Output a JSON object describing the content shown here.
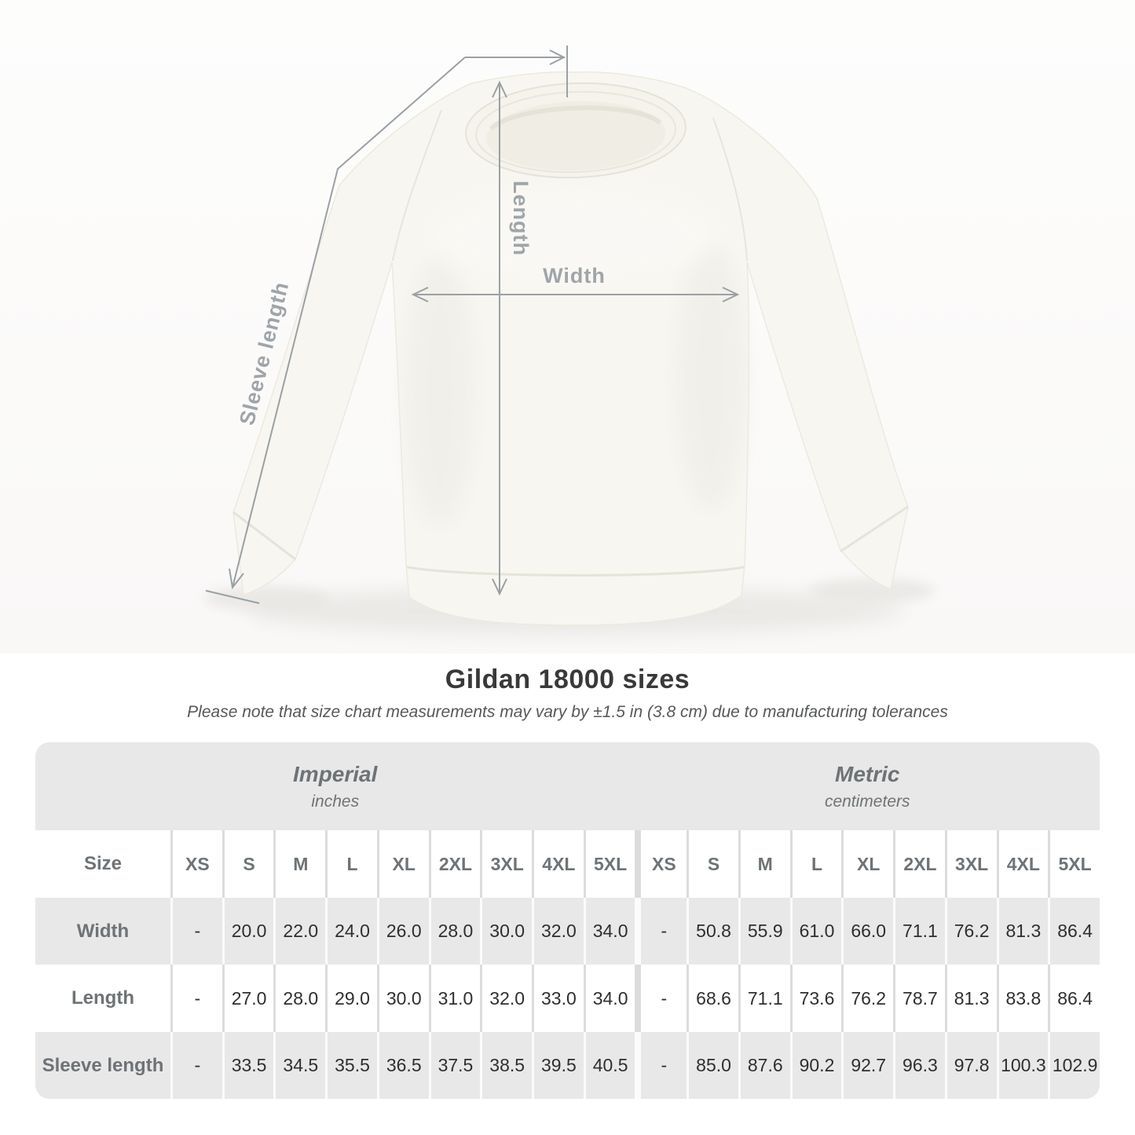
{
  "diagram": {
    "labels": {
      "length": "Length",
      "width": "Width",
      "sleeve": "Sleeve length"
    }
  },
  "title": "Gildan 18000 sizes",
  "subtitle": "Please note that size chart measurements may vary by ±1.5 in (3.8 cm) due to manufacturing tolerances",
  "table": {
    "size_label": "Size",
    "unit_groups": [
      {
        "name": "Imperial",
        "unit": "inches"
      },
      {
        "name": "Metric",
        "unit": "centimeters"
      }
    ],
    "sizes": [
      "XS",
      "S",
      "M",
      "L",
      "XL",
      "2XL",
      "3XL",
      "4XL",
      "5XL"
    ],
    "rows": [
      {
        "label": "Width",
        "imperial": [
          "-",
          "20.0",
          "22.0",
          "24.0",
          "26.0",
          "28.0",
          "30.0",
          "32.0",
          "34.0"
        ],
        "metric": [
          "-",
          "50.8",
          "55.9",
          "61.0",
          "66.0",
          "71.1",
          "76.2",
          "81.3",
          "86.4"
        ]
      },
      {
        "label": "Length",
        "imperial": [
          "-",
          "27.0",
          "28.0",
          "29.0",
          "30.0",
          "31.0",
          "32.0",
          "33.0",
          "34.0"
        ],
        "metric": [
          "-",
          "68.6",
          "71.1",
          "73.6",
          "76.2",
          "78.7",
          "81.3",
          "83.8",
          "86.4"
        ]
      },
      {
        "label": "Sleeve length",
        "imperial": [
          "-",
          "33.5",
          "34.5",
          "35.5",
          "36.5",
          "37.5",
          "38.5",
          "39.5",
          "40.5"
        ],
        "metric": [
          "-",
          "85.0",
          "87.6",
          "90.2",
          "92.7",
          "96.3",
          "97.8",
          "100.3",
          "102.9"
        ]
      }
    ]
  },
  "colors": {
    "table_band": "#e9e8e8",
    "row_alt": "#e9e8e8",
    "row_white": "#ffffff",
    "header_text": "#6d7376",
    "value_text": "#2f2f2f",
    "arrow": "#9aa0a4",
    "garment": "#f8f6f1"
  },
  "chart_data": {
    "type": "table",
    "title": "Gildan 18000 sizes",
    "note": "Please note that size chart measurements may vary by ±1.5 in (3.8 cm) due to manufacturing tolerances",
    "columns": [
      "Size",
      "XS",
      "S",
      "M",
      "L",
      "XL",
      "2XL",
      "3XL",
      "4XL",
      "5XL"
    ],
    "imperial_unit": "inches",
    "metric_unit": "centimeters",
    "rows": [
      {
        "measure": "Width",
        "imperial": [
          null,
          20.0,
          22.0,
          24.0,
          26.0,
          28.0,
          30.0,
          32.0,
          34.0
        ],
        "metric": [
          null,
          50.8,
          55.9,
          61.0,
          66.0,
          71.1,
          76.2,
          81.3,
          86.4
        ]
      },
      {
        "measure": "Length",
        "imperial": [
          null,
          27.0,
          28.0,
          29.0,
          30.0,
          31.0,
          32.0,
          33.0,
          34.0
        ],
        "metric": [
          null,
          68.6,
          71.1,
          73.6,
          76.2,
          78.7,
          81.3,
          83.8,
          86.4
        ]
      },
      {
        "measure": "Sleeve length",
        "imperial": [
          null,
          33.5,
          34.5,
          35.5,
          36.5,
          37.5,
          38.5,
          39.5,
          40.5
        ],
        "metric": [
          null,
          85.0,
          87.6,
          90.2,
          92.7,
          96.3,
          97.8,
          100.3,
          102.9
        ]
      }
    ]
  }
}
